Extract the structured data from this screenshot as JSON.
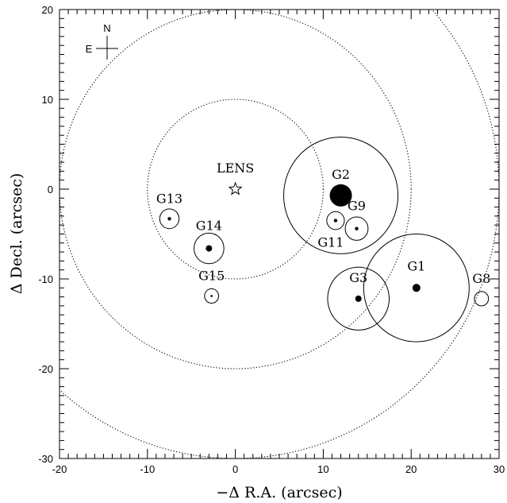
{
  "chart_data": {
    "type": "scatter",
    "title": "",
    "xlabel": "−Δ R.A. (arcsec)",
    "ylabel": "Δ Decl. (arcsec)",
    "xlim": [
      -20,
      30
    ],
    "ylim": [
      -30,
      20
    ],
    "xticks": [
      -20,
      -10,
      0,
      10,
      20,
      30
    ],
    "yticks": [
      -30,
      -20,
      -10,
      0,
      10,
      20
    ],
    "grid": false,
    "compass": {
      "north": "N",
      "east": "E"
    },
    "lens": {
      "name": "LENS",
      "x": 0.0,
      "y": 0.0
    },
    "dotted_circles_radius": [
      10,
      20,
      30
    ],
    "galaxies": [
      {
        "name": "G1",
        "x": 20.6,
        "y": -11.0,
        "dot": "large",
        "circle_radius": 6.0
      },
      {
        "name": "G2",
        "x": 12.0,
        "y": -0.7,
        "dot": "huge",
        "circle_radius": 6.5
      },
      {
        "name": "G3",
        "x": 14.0,
        "y": -12.2,
        "dot": "medium",
        "circle_radius": 3.5
      },
      {
        "name": "G8",
        "x": 28.0,
        "y": -12.2,
        "dot": "none",
        "circle_radius": 0.8
      },
      {
        "name": "G9",
        "x": 13.8,
        "y": -4.4,
        "dot": "small",
        "circle_radius": 1.3
      },
      {
        "name": "G11",
        "x": 11.4,
        "y": -3.5,
        "dot": "small",
        "circle_radius": 1.0
      },
      {
        "name": "G13",
        "x": -7.5,
        "y": -3.3,
        "dot": "small",
        "circle_radius": 1.1
      },
      {
        "name": "G14",
        "x": -3.0,
        "y": -6.6,
        "dot": "medium",
        "circle_radius": 1.7
      },
      {
        "name": "G15",
        "x": -2.7,
        "y": -11.9,
        "dot": "tiny",
        "circle_radius": 0.8
      }
    ]
  }
}
